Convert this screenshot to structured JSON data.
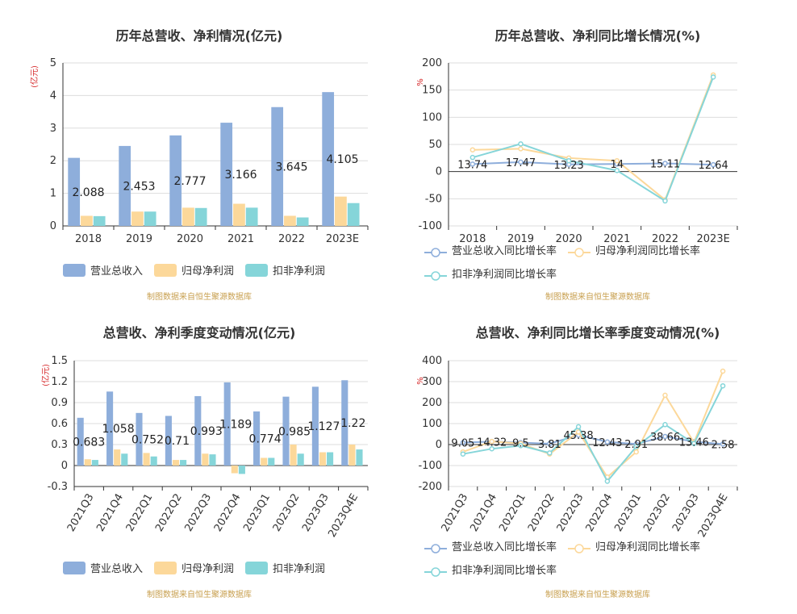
{
  "source_text": "制图数据来自恒生聚源数据库",
  "colors": {
    "revenue": "#8eaedb",
    "parent": "#fcd89a",
    "deducted": "#85d5d9"
  },
  "chart_data": [
    {
      "id": "c1",
      "type": "bar",
      "title": "历年总营收、净利情况(亿元)",
      "ylabel": "(亿元)",
      "categories": [
        "2018",
        "2019",
        "2020",
        "2021",
        "2022",
        "2023E"
      ],
      "ylim": [
        0,
        5
      ],
      "yticks": [
        0,
        1,
        2,
        3,
        4,
        5
      ],
      "tick_labels": [
        "0",
        "1",
        "2",
        "3",
        "4",
        "5"
      ],
      "series": [
        {
          "name": "营业总收入",
          "color": "#8eaedb",
          "values": [
            2.088,
            2.453,
            2.777,
            3.166,
            3.645,
            4.105
          ],
          "labels": [
            "2.088",
            "2.453",
            "2.777",
            "3.166",
            "3.645",
            "4.105"
          ]
        },
        {
          "name": "归母净利润",
          "color": "#fcd89a",
          "values": [
            0.31,
            0.44,
            0.56,
            0.68,
            0.31,
            0.9
          ]
        },
        {
          "name": "扣非净利润",
          "color": "#85d5d9",
          "values": [
            0.3,
            0.44,
            0.55,
            0.56,
            0.26,
            0.7
          ]
        }
      ],
      "legend_position": "bottom"
    },
    {
      "id": "c2",
      "type": "line",
      "title": "历年总营收、净利同比增长情况(%)",
      "ylabel": "%",
      "categories": [
        "2018",
        "2019",
        "2020",
        "2021",
        "2022",
        "2023E"
      ],
      "ylim": [
        -100,
        200
      ],
      "yticks": [
        -100,
        -50,
        0,
        50,
        100,
        150,
        200
      ],
      "tick_labels": [
        "-100",
        "-50",
        "0",
        "50",
        "100",
        "150",
        "200"
      ],
      "series": [
        {
          "name": "营业总收入同比增长率",
          "color": "#8eaedb",
          "values": [
            13.74,
            17.47,
            13.23,
            14,
            15.11,
            12.64
          ],
          "labels": [
            "13.74",
            "17.47",
            "13.23",
            "14",
            "15.11",
            "12.64"
          ]
        },
        {
          "name": "归母净利润同比增长率",
          "color": "#fcd89a",
          "values": [
            40,
            42,
            25,
            20,
            -52,
            178
          ]
        },
        {
          "name": "扣非净利润同比增长率",
          "color": "#85d5d9",
          "values": [
            26,
            51,
            20,
            2,
            -54,
            174
          ]
        }
      ],
      "legend_position": "bottom"
    },
    {
      "id": "c3",
      "type": "bar",
      "title": "总营收、净利季度变动情况(亿元)",
      "ylabel": "(亿元)",
      "categories": [
        "2021Q3",
        "2021Q4",
        "2022Q1",
        "2022Q2",
        "2022Q3",
        "2022Q4",
        "2023Q1",
        "2023Q2",
        "2023Q3",
        "2023Q4E"
      ],
      "ylim": [
        -0.3,
        1.5
      ],
      "yticks": [
        -0.3,
        0,
        0.3,
        0.6,
        0.9,
        1.2,
        1.5
      ],
      "tick_labels": [
        "-0.3",
        "0",
        "0.3",
        "0.6",
        "0.9",
        "1.2",
        "1.5"
      ],
      "series": [
        {
          "name": "营业总收入",
          "color": "#8eaedb",
          "values": [
            0.683,
            1.058,
            0.752,
            0.71,
            0.993,
            1.189,
            0.774,
            0.985,
            1.127,
            1.22
          ],
          "labels": [
            "0.683",
            "1.058",
            "0.752",
            "0.71",
            "0.993",
            "1.189",
            "0.774",
            "0.985",
            "1.127",
            "1.22"
          ]
        },
        {
          "name": "归母净利润",
          "color": "#fcd89a",
          "values": [
            0.09,
            0.23,
            0.18,
            0.08,
            0.17,
            -0.11,
            0.11,
            0.3,
            0.19,
            0.3
          ]
        },
        {
          "name": "扣非净利润",
          "color": "#85d5d9",
          "values": [
            0.08,
            0.17,
            0.13,
            0.08,
            0.16,
            -0.12,
            0.11,
            0.17,
            0.19,
            0.23
          ]
        }
      ],
      "legend_position": "bottom"
    },
    {
      "id": "c4",
      "type": "line",
      "title": "总营收、净利同比增长率季度变动情况(%)",
      "ylabel": "%",
      "categories": [
        "2021Q3",
        "2021Q4",
        "2022Q1",
        "2022Q2",
        "2022Q3",
        "2022Q4",
        "2023Q1",
        "2023Q2",
        "2023Q3",
        "2023Q4E"
      ],
      "ylim": [
        -200,
        400
      ],
      "yticks": [
        -200,
        -100,
        0,
        100,
        200,
        300,
        400
      ],
      "tick_labels": [
        "-200",
        "-100",
        "0",
        "100",
        "200",
        "300",
        "400"
      ],
      "series": [
        {
          "name": "营业总收入同比增长率",
          "color": "#8eaedb",
          "values": [
            9.05,
            14.32,
            9.5,
            3.81,
            45.38,
            12.43,
            2.91,
            38.66,
            13.46,
            2.58
          ],
          "labels": [
            "9.05",
            "14.32",
            "9.5",
            "3.81",
            "45.38",
            "12.43",
            "2.91",
            "38.66",
            "13.46",
            "2.58"
          ]
        },
        {
          "name": "归母净利润同比增长率",
          "color": "#fcd89a",
          "values": [
            -35,
            15,
            5,
            -45,
            60,
            -155,
            -35,
            235,
            10,
            350
          ]
        },
        {
          "name": "扣非净利润同比增长率",
          "color": "#85d5d9",
          "values": [
            -45,
            -20,
            -5,
            -40,
            85,
            -175,
            -10,
            95,
            5,
            280
          ]
        }
      ],
      "legend_position": "bottom"
    }
  ]
}
